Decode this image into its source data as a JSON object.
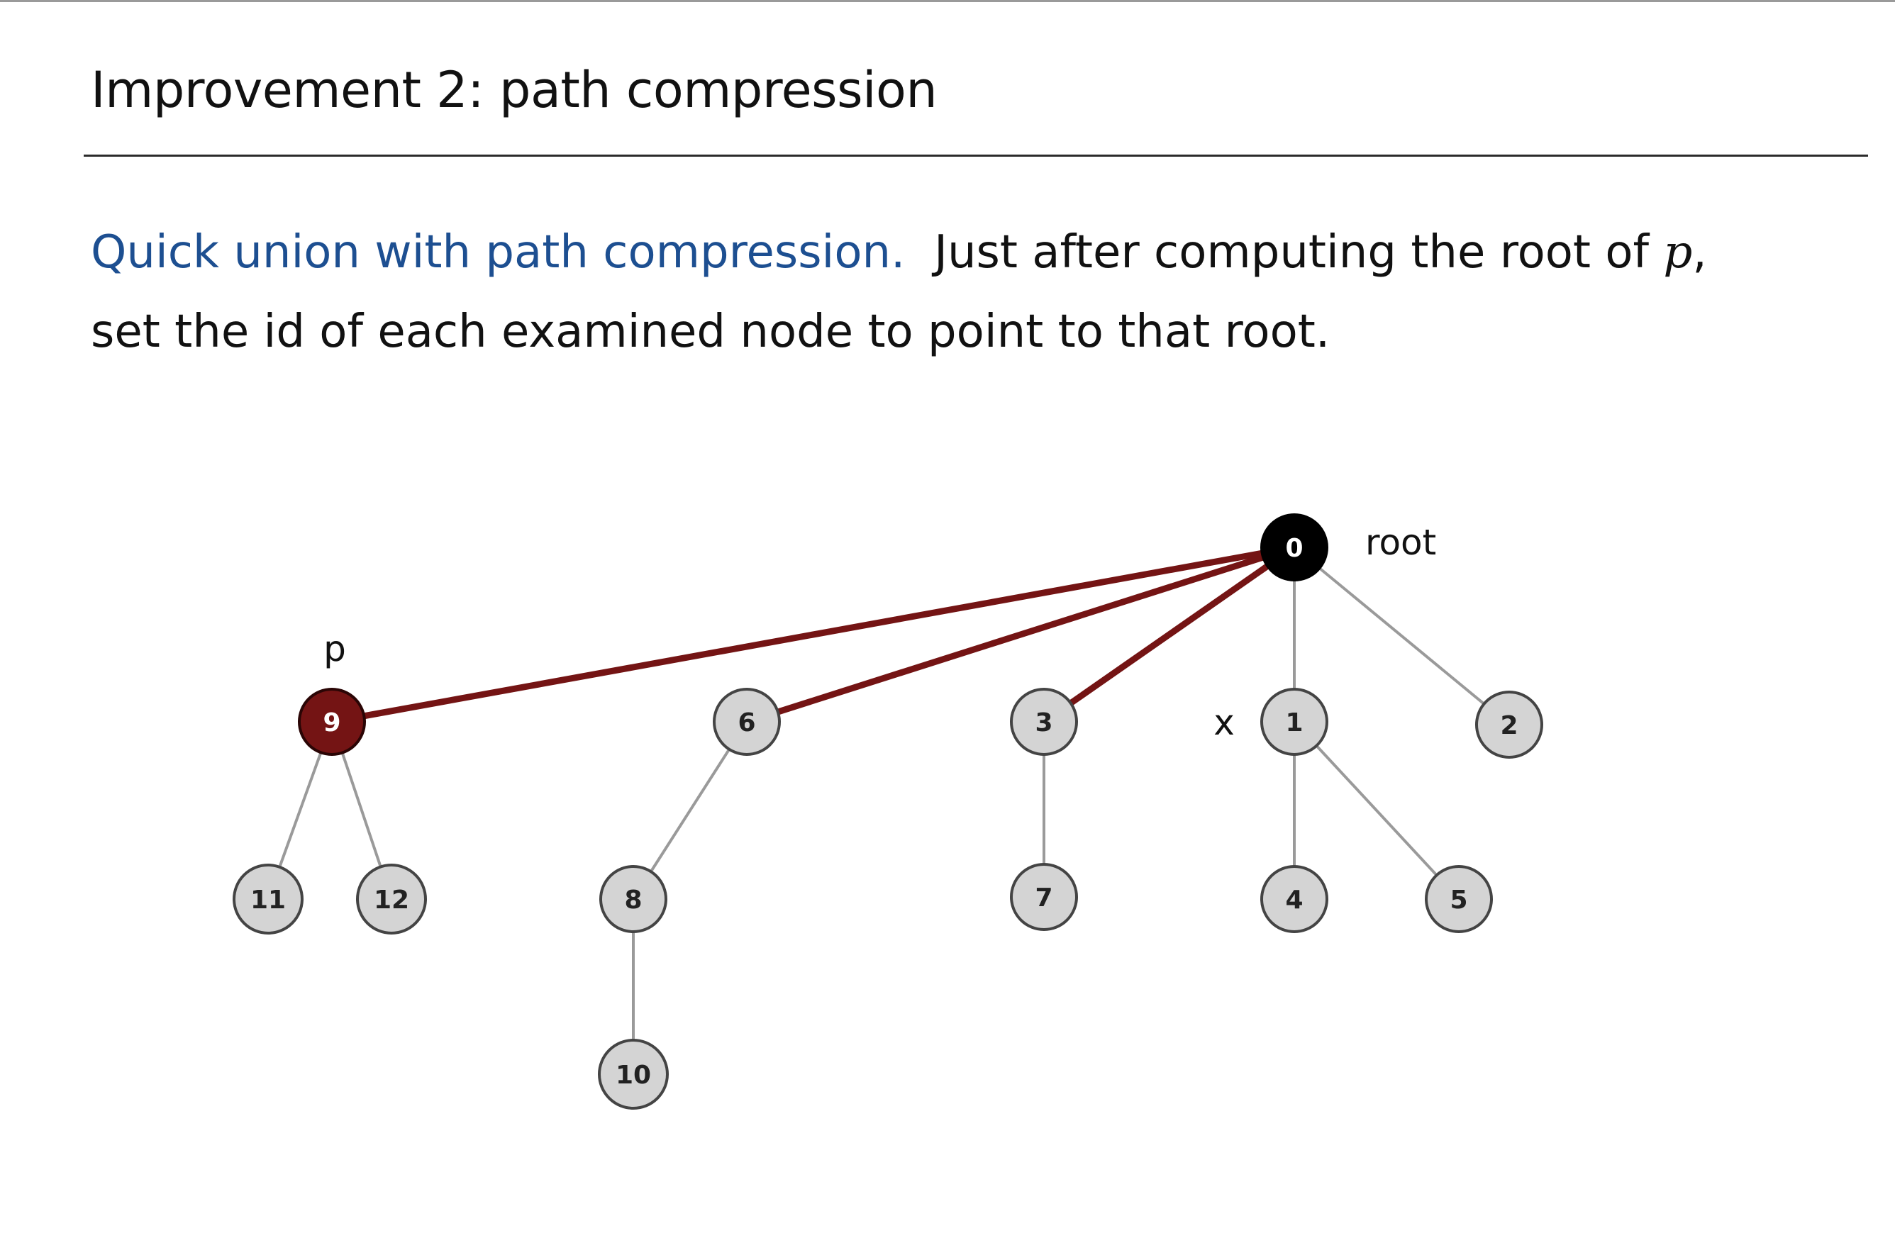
{
  "slide": {
    "title": "Improvement 2:  path compression",
    "lead_text": "Quick union with path compression.",
    "body_part1": "Just after computing the root of ",
    "body_var": "p",
    "body_part2": ",",
    "body_line2": "set the id of each examined node to point to that root."
  },
  "diagram": {
    "nodes": [
      {
        "id": "0",
        "label": "0"
      },
      {
        "id": "9",
        "label": "9"
      },
      {
        "id": "6",
        "label": "6"
      },
      {
        "id": "3",
        "label": "3"
      },
      {
        "id": "1",
        "label": "1"
      },
      {
        "id": "2",
        "label": "2"
      },
      {
        "id": "11",
        "label": "11"
      },
      {
        "id": "12",
        "label": "12"
      },
      {
        "id": "8",
        "label": "8"
      },
      {
        "id": "7",
        "label": "7"
      },
      {
        "id": "4",
        "label": "4"
      },
      {
        "id": "5",
        "label": "5"
      },
      {
        "id": "10",
        "label": "10"
      }
    ],
    "edges": [
      {
        "from": "0",
        "to": "9",
        "highlighted": true
      },
      {
        "from": "0",
        "to": "6",
        "highlighted": true
      },
      {
        "from": "0",
        "to": "3",
        "highlighted": true
      },
      {
        "from": "0",
        "to": "1",
        "highlighted": false
      },
      {
        "from": "0",
        "to": "2",
        "highlighted": false
      },
      {
        "from": "9",
        "to": "11",
        "highlighted": false
      },
      {
        "from": "9",
        "to": "12",
        "highlighted": false
      },
      {
        "from": "6",
        "to": "8",
        "highlighted": false
      },
      {
        "from": "8",
        "to": "10",
        "highlighted": false
      },
      {
        "from": "3",
        "to": "7",
        "highlighted": false
      },
      {
        "from": "1",
        "to": "4",
        "highlighted": false
      },
      {
        "from": "1",
        "to": "5",
        "highlighted": false
      }
    ],
    "annotations": {
      "root_label": "root",
      "p_label": "p",
      "x_label": "x"
    },
    "colors": {
      "highlight": "#741414",
      "root_fill": "#000000",
      "node_fill": "#d4d4d4",
      "lead_text": "#1d4f91"
    }
  }
}
